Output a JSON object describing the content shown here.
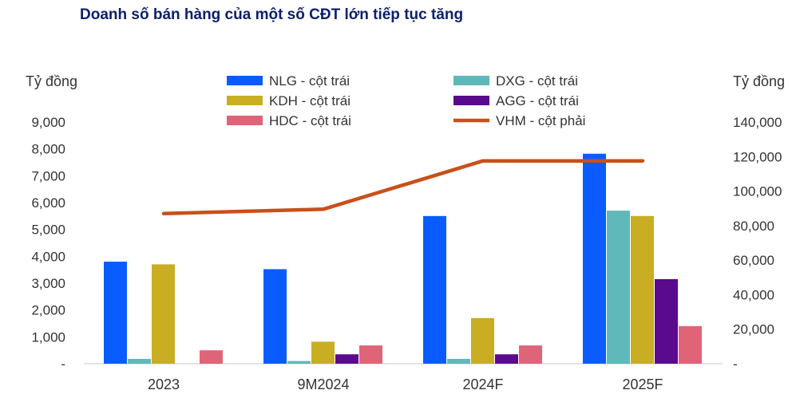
{
  "title": "Doanh số bán hàng của một số CĐT lớn tiếp tục tăng",
  "chart_data": {
    "type": "bar",
    "categories": [
      "2023",
      "9M2024",
      "2024F",
      "2025F"
    ],
    "y_left_label": "Tỷ đồng",
    "y_right_label": "Tỷ đồng",
    "y_left_ticks": [
      "-",
      "1,000",
      "2,000",
      "3,000",
      "4,000",
      "5,000",
      "6,000",
      "7,000",
      "8,000",
      "9,000"
    ],
    "y_right_ticks": [
      "-",
      "20,000",
      "40,000",
      "60,000",
      "80,000",
      "100,000",
      "120,000",
      "140,000"
    ],
    "ylim_left": [
      0,
      9000
    ],
    "ylim_right": [
      0,
      140000
    ],
    "series": [
      {
        "name": "NLG - cột trái",
        "color": "#0a5cff",
        "values": [
          3800,
          3520,
          5500,
          7820
        ]
      },
      {
        "name": "DXG - cột trái",
        "color": "#5fb8ba",
        "values": [
          180,
          100,
          180,
          5700
        ]
      },
      {
        "name": "KDH - cột trái",
        "color": "#c9ad22",
        "values": [
          3700,
          820,
          1700,
          5500
        ]
      },
      {
        "name": "AGG - cột trái",
        "color": "#5a0a8c",
        "values": [
          0,
          350,
          350,
          3150
        ]
      },
      {
        "name": "HDC - cột trái",
        "color": "#e06478",
        "values": [
          500,
          680,
          680,
          1400
        ]
      }
    ],
    "line": {
      "name": "VHM - cột phải",
      "color": "#c8501a",
      "values": [
        87000,
        89500,
        117500,
        117500
      ]
    },
    "legend_position": "top-center"
  }
}
